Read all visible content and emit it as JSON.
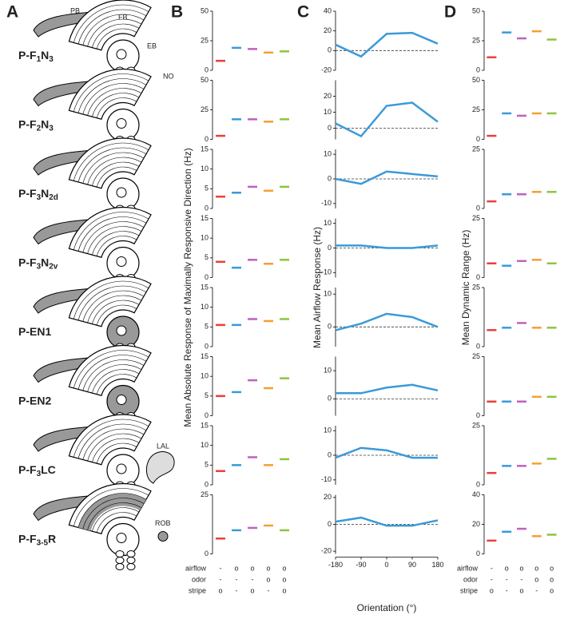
{
  "panel_labels": [
    "A",
    "B",
    "C",
    "D"
  ],
  "diagram_labels": {
    "pb": "PB",
    "fb": "FB",
    "eb": "EB",
    "no": "NO",
    "lal": "LAL",
    "rob": "ROB"
  },
  "neurons": [
    [
      {
        "t": "P-F"
      },
      {
        "t": "1",
        "sub": true
      },
      {
        "t": "N"
      },
      {
        "t": "3",
        "sub": true
      }
    ],
    [
      {
        "t": "P-F"
      },
      {
        "t": "2",
        "sub": true
      },
      {
        "t": "N"
      },
      {
        "t": "3",
        "sub": true
      }
    ],
    [
      {
        "t": "P-F"
      },
      {
        "t": "3",
        "sub": true
      },
      {
        "t": "N"
      },
      {
        "t": "2d",
        "sub": true
      }
    ],
    [
      {
        "t": "P-F"
      },
      {
        "t": "3",
        "sub": true
      },
      {
        "t": "N"
      },
      {
        "t": "2v",
        "sub": true
      }
    ],
    [
      {
        "t": "P-EN1"
      }
    ],
    [
      {
        "t": "P-EN2"
      }
    ],
    [
      {
        "t": "P-F"
      },
      {
        "t": "3",
        "sub": true
      },
      {
        "t": "LC"
      }
    ],
    [
      {
        "t": "P-F"
      },
      {
        "t": "3-5",
        "sub": true
      },
      {
        "t": "R"
      }
    ]
  ],
  "axis_titles": {
    "b": "Mean Absolute Response of Maximally Responsive Direction (Hz)",
    "c": "Mean Airflow Response (Hz)",
    "c_x": "Orientation (°)",
    "d": "Mean Dynamic Range (Hz)"
  },
  "conditions": [
    {
      "name": "airflow",
      "marks": [
        "-",
        "o",
        "o",
        "o",
        "o"
      ]
    },
    {
      "name": "odor",
      "marks": [
        "-",
        "-",
        "-",
        "o",
        "o"
      ]
    },
    {
      "name": "stripe",
      "marks": [
        "o",
        "-",
        "o",
        "-",
        "o"
      ]
    }
  ],
  "chart_data": [
    {
      "type": "dot",
      "values": [
        8,
        19,
        18,
        15,
        16
      ],
      "colors": [
        "#e8413c",
        "#3a9ad9",
        "#c060c0",
        "#f5a030",
        "#8cc63e"
      ],
      "ylim": [
        0,
        50
      ],
      "yticks": [
        0,
        25,
        50
      ]
    },
    {
      "type": "line",
      "x": [
        -180,
        -90,
        0,
        90,
        180
      ],
      "values": [
        6,
        -6,
        17,
        18,
        7
      ],
      "color": "#3a9ad9",
      "xlim": [
        -180,
        180
      ],
      "ylim": [
        -20,
        40
      ],
      "yticks": [
        -20,
        0,
        20,
        40
      ],
      "hline": 0
    },
    {
      "type": "dot",
      "values": [
        11,
        32,
        27,
        33,
        26
      ],
      "colors": [
        "#e8413c",
        "#3a9ad9",
        "#c060c0",
        "#f5a030",
        "#8cc63e"
      ],
      "ylim": [
        0,
        50
      ],
      "yticks": [
        0,
        25,
        50
      ]
    },
    {
      "type": "dot",
      "values": [
        3,
        17,
        17,
        15,
        17
      ],
      "colors": [
        "#e8413c",
        "#3a9ad9",
        "#c060c0",
        "#f5a030",
        "#8cc63e"
      ],
      "ylim": [
        0,
        50
      ],
      "yticks": [
        0,
        25,
        50
      ]
    },
    {
      "type": "line",
      "x": [
        -180,
        -90,
        0,
        90,
        180
      ],
      "values": [
        3,
        -5,
        14,
        16,
        4
      ],
      "color": "#3a9ad9",
      "xlim": [
        -180,
        180
      ],
      "ylim": [
        -7,
        30
      ],
      "yticks": [
        0,
        10,
        20
      ],
      "hline": 0
    },
    {
      "type": "dot",
      "values": [
        3,
        22,
        20,
        22,
        22
      ],
      "colors": [
        "#e8413c",
        "#3a9ad9",
        "#c060c0",
        "#f5a030",
        "#8cc63e"
      ],
      "ylim": [
        0,
        50
      ],
      "yticks": [
        0,
        25,
        50
      ]
    },
    {
      "type": "dot",
      "values": [
        3,
        4,
        5.5,
        4.5,
        5.5
      ],
      "colors": [
        "#e8413c",
        "#3a9ad9",
        "#c060c0",
        "#f5a030",
        "#8cc63e"
      ],
      "ylim": [
        0,
        15
      ],
      "yticks": [
        0,
        5,
        10,
        15
      ]
    },
    {
      "type": "line",
      "x": [
        -180,
        -90,
        0,
        90,
        180
      ],
      "values": [
        0,
        -2,
        3,
        2,
        1
      ],
      "color": "#3a9ad9",
      "xlim": [
        -180,
        180
      ],
      "ylim": [
        -12,
        12
      ],
      "yticks": [
        -10,
        0,
        10
      ],
      "hline": 0
    },
    {
      "type": "dot",
      "values": [
        3,
        6,
        6,
        7,
        7
      ],
      "colors": [
        "#e8413c",
        "#3a9ad9",
        "#c060c0",
        "#f5a030",
        "#8cc63e"
      ],
      "ylim": [
        0,
        25
      ],
      "yticks": [
        0,
        25
      ]
    },
    {
      "type": "dot",
      "values": [
        4,
        2.5,
        4.5,
        3.5,
        4.5
      ],
      "colors": [
        "#e8413c",
        "#3a9ad9",
        "#c060c0",
        "#f5a030",
        "#8cc63e"
      ],
      "ylim": [
        0,
        15
      ],
      "yticks": [
        0,
        5,
        10,
        15
      ]
    },
    {
      "type": "line",
      "x": [
        -180,
        -90,
        0,
        90,
        180
      ],
      "values": [
        1,
        1,
        0,
        0,
        1
      ],
      "color": "#3a9ad9",
      "xlim": [
        -180,
        180
      ],
      "ylim": [
        -12,
        12
      ],
      "yticks": [
        -10,
        0,
        10
      ],
      "hline": 0
    },
    {
      "type": "dot",
      "values": [
        6,
        5,
        7,
        7.5,
        6
      ],
      "colors": [
        "#e8413c",
        "#3a9ad9",
        "#c060c0",
        "#f5a030",
        "#8cc63e"
      ],
      "ylim": [
        0,
        25
      ],
      "yticks": [
        0,
        25
      ]
    },
    {
      "type": "dot",
      "values": [
        5.5,
        5.5,
        7,
        6.5,
        7
      ],
      "colors": [
        "#e8413c",
        "#3a9ad9",
        "#c060c0",
        "#f5a030",
        "#8cc63e"
      ],
      "ylim": [
        0,
        15
      ],
      "yticks": [
        0,
        5,
        10,
        15
      ]
    },
    {
      "type": "line",
      "x": [
        -180,
        -90,
        0,
        90,
        180
      ],
      "values": [
        -1,
        1,
        4,
        3,
        0
      ],
      "color": "#3a9ad9",
      "xlim": [
        -180,
        180
      ],
      "ylim": [
        -6,
        12
      ],
      "yticks": [
        0,
        10
      ],
      "hline": 0
    },
    {
      "type": "dot",
      "values": [
        7,
        8,
        10,
        8,
        8
      ],
      "colors": [
        "#e8413c",
        "#3a9ad9",
        "#c060c0",
        "#f5a030",
        "#8cc63e"
      ],
      "ylim": [
        0,
        25
      ],
      "yticks": [
        0,
        25
      ]
    },
    {
      "type": "dot",
      "values": [
        5,
        6,
        9,
        7,
        9.5
      ],
      "colors": [
        "#e8413c",
        "#3a9ad9",
        "#c060c0",
        "#f5a030",
        "#8cc63e"
      ],
      "ylim": [
        0,
        15
      ],
      "yticks": [
        0,
        5,
        10,
        15
      ]
    },
    {
      "type": "line",
      "x": [
        -180,
        -90,
        0,
        90,
        180
      ],
      "values": [
        2,
        2,
        4,
        5,
        3
      ],
      "color": "#3a9ad9",
      "xlim": [
        -180,
        180
      ],
      "ylim": [
        -6,
        15
      ],
      "yticks": [
        0,
        10
      ],
      "hline": 0
    },
    {
      "type": "dot",
      "values": [
        6,
        6,
        6,
        8,
        8
      ],
      "colors": [
        "#e8413c",
        "#3a9ad9",
        "#c060c0",
        "#f5a030",
        "#8cc63e"
      ],
      "ylim": [
        0,
        25
      ],
      "yticks": [
        0,
        25
      ]
    },
    {
      "type": "dot",
      "values": [
        3.5,
        5,
        7,
        5,
        6.5
      ],
      "colors": [
        "#e8413c",
        "#3a9ad9",
        "#c060c0",
        "#f5a030",
        "#8cc63e"
      ],
      "ylim": [
        0,
        15
      ],
      "yticks": [
        0,
        5,
        10,
        15
      ]
    },
    {
      "type": "line",
      "x": [
        -180,
        -90,
        0,
        90,
        180
      ],
      "values": [
        -1,
        3,
        2,
        -1,
        -1
      ],
      "color": "#3a9ad9",
      "xlim": [
        -180,
        180
      ],
      "ylim": [
        -12,
        12
      ],
      "yticks": [
        -10,
        0,
        10
      ],
      "hline": 0
    },
    {
      "type": "dot",
      "values": [
        5,
        8,
        8,
        9,
        11
      ],
      "colors": [
        "#e8413c",
        "#3a9ad9",
        "#c060c0",
        "#f5a030",
        "#8cc63e"
      ],
      "ylim": [
        0,
        25
      ],
      "yticks": [
        0,
        25
      ]
    },
    {
      "type": "dot",
      "values": [
        6.5,
        10,
        11,
        12,
        10
      ],
      "colors": [
        "#e8413c",
        "#3a9ad9",
        "#c060c0",
        "#f5a030",
        "#8cc63e"
      ],
      "ylim": [
        0,
        25
      ],
      "yticks": [
        0,
        25
      ]
    },
    {
      "type": "line",
      "x": [
        -180,
        -90,
        0,
        90,
        180
      ],
      "values": [
        2,
        5,
        -1,
        -1,
        3
      ],
      "color": "#3a9ad9",
      "xlim": [
        -180,
        180
      ],
      "ylim": [
        -22,
        22
      ],
      "yticks": [
        -20,
        0,
        20
      ],
      "xticks": [
        -180,
        -90,
        0,
        90,
        180
      ],
      "hline": 0
    },
    {
      "type": "dot",
      "values": [
        9,
        15,
        17,
        12,
        13
      ],
      "colors": [
        "#e8413c",
        "#3a9ad9",
        "#c060c0",
        "#f5a030",
        "#8cc63e"
      ],
      "ylim": [
        0,
        40
      ],
      "yticks": [
        0,
        20,
        40
      ]
    }
  ]
}
